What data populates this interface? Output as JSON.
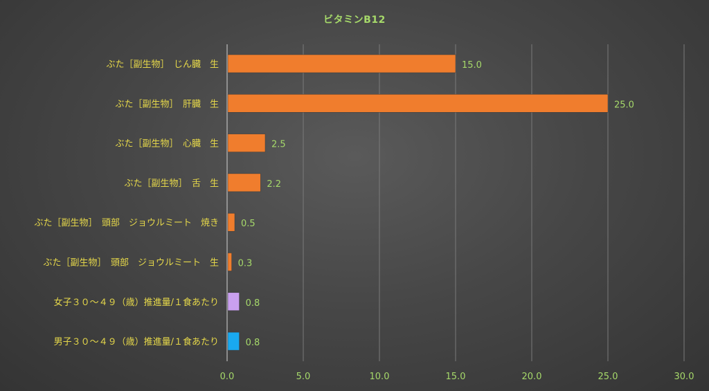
{
  "chart_data": {
    "type": "bar",
    "orientation": "horizontal",
    "title": "ビタミンB12",
    "xlabel": "",
    "ylabel": "",
    "xlim": [
      0,
      30
    ],
    "xticks": [
      "0.0",
      "5.0",
      "10.0",
      "15.0",
      "20.0",
      "25.0",
      "30.0"
    ],
    "grid": true,
    "legend": "none",
    "categories": [
      "ぶた［副生物］　じん臓　生",
      "ぶた［副生物］　肝臓　生",
      "ぶた［副生物］　心臓　生",
      "ぶた［副生物］　舌　生",
      "ぶた［副生物］　頭部　ジョウルミート　焼き",
      "ぶた［副生物］　頭部　ジョウルミート　生",
      "女子３０～４９（歳）推進量/１食あたり",
      "男子３０～４９（歳）推進量/１食あたり"
    ],
    "values": [
      15.0,
      25.0,
      2.5,
      2.2,
      0.5,
      0.3,
      0.8,
      0.8
    ],
    "value_labels": [
      "15.0",
      "25.0",
      "2.5",
      "2.2",
      "0.5",
      "0.3",
      "0.8",
      "0.8"
    ],
    "bar_colors": [
      "#f07d2d",
      "#f07d2d",
      "#f07d2d",
      "#f07d2d",
      "#f07d2d",
      "#f07d2d",
      "#c9a0ef",
      "#19a9f0"
    ],
    "colors": {
      "title": "#a6d96a",
      "tick_label": "#a6d96a",
      "category_label": "#e6d84a",
      "value_label": "#a6d96a",
      "grid": "#7a7a7a",
      "axis": "#bdbdbd"
    }
  }
}
